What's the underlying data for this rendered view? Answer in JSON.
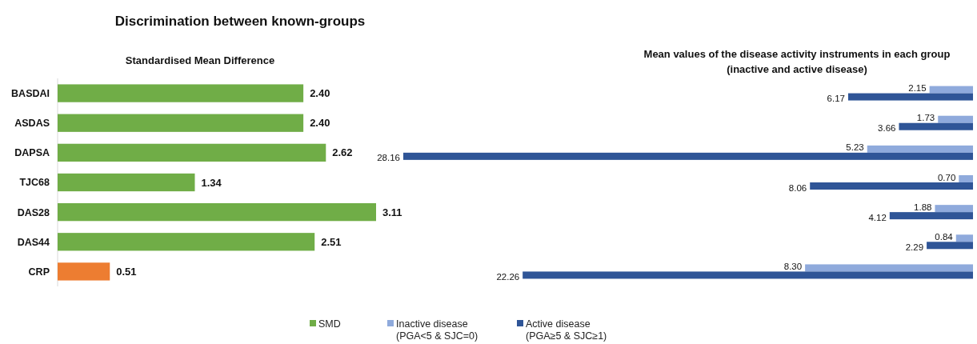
{
  "chart_data": [
    {
      "type": "bar",
      "orientation": "horizontal",
      "title": "Discrimination between known-groups",
      "subtitle": "Standardised Mean Difference",
      "categories": [
        "BASDAI",
        "ASDAS",
        "DAPSA",
        "TJC68",
        "DAS28",
        "DAS44",
        "CRP"
      ],
      "series": [
        {
          "name": "SMD",
          "color": "#70ad47",
          "colors": [
            "#70ad47",
            "#70ad47",
            "#70ad47",
            "#70ad47",
            "#70ad47",
            "#70ad47",
            "#ed7d31"
          ],
          "values": [
            2.4,
            2.4,
            2.62,
            1.34,
            3.11,
            2.51,
            0.51
          ],
          "value_labels": [
            "2.40",
            "2.40",
            "2.62",
            "1.34",
            "3.11",
            "2.51",
            "0.51"
          ]
        }
      ],
      "legend": "bottom"
    },
    {
      "type": "bar",
      "orientation": "horizontal",
      "title": "Mean values of the disease activity instruments in each group\n(inactive and active disease)",
      "categories": [
        null,
        null,
        null,
        null,
        null,
        null,
        null
      ],
      "tick_labels": false,
      "series": [
        {
          "name": "Inactive disease\n(PGA<5 & SJC=0)",
          "color": "#8faadc",
          "values": [
            2.15,
            1.73,
            5.23,
            0.7,
            1.88,
            0.84,
            8.3
          ],
          "value_labels": [
            "2.15",
            "1.73",
            "5.23",
            "0.70",
            "1.88",
            "0.84",
            "8.30"
          ]
        },
        {
          "name": "Active disease\n(PGA≥5 & SJC≥1)",
          "color": "#2f5597",
          "values": [
            6.17,
            3.66,
            28.16,
            8.06,
            4.12,
            2.29,
            22.26
          ],
          "value_labels": [
            "6.17",
            "3.66",
            "28.16",
            "8.06",
            "4.12",
            "2.29",
            "22.26"
          ]
        }
      ],
      "legend": "bottom"
    }
  ]
}
